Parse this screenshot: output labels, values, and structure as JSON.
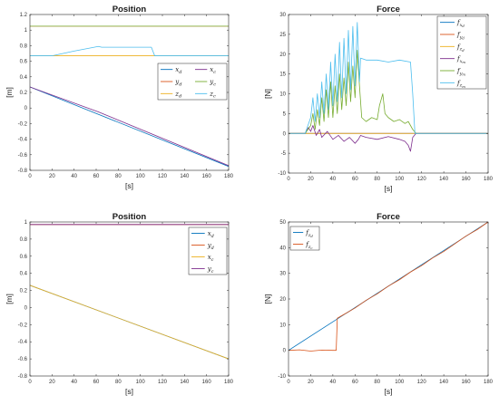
{
  "chart_data": [
    {
      "id": "p1",
      "type": "line",
      "title": "Position",
      "xlabel": "[s]",
      "ylabel": "[m]",
      "xlim": [
        0,
        180
      ],
      "ylim": [
        -0.8,
        1.2
      ],
      "xticks": [
        0,
        20,
        40,
        60,
        80,
        100,
        120,
        140,
        160,
        180
      ],
      "yticks": [
        -0.8,
        -0.6,
        -0.4,
        -0.2,
        0,
        0.2,
        0.4,
        0.6,
        0.8,
        1,
        1.2
      ],
      "legend_position": "right",
      "legend_columns": 2,
      "series": [
        {
          "name": "x_d",
          "label_main": "x",
          "label_sub": "d",
          "color": "#0072bd",
          "x": [
            0,
            180
          ],
          "y": [
            0.27,
            -0.75
          ]
        },
        {
          "name": "y_d",
          "label_main": "y",
          "label_sub": "d",
          "color": "#d95319",
          "x": [
            0,
            180
          ],
          "y": [
            1.05,
            1.05
          ]
        },
        {
          "name": "z_d",
          "label_main": "z",
          "label_sub": "d",
          "color": "#edb120",
          "x": [
            0,
            180
          ],
          "y": [
            0.67,
            0.67
          ]
        },
        {
          "name": "x_c",
          "label_main": "x",
          "label_sub": "c",
          "color": "#7e2f8e",
          "x": [
            0,
            62,
            180
          ],
          "y": [
            0.27,
            -0.05,
            -0.74
          ]
        },
        {
          "name": "y_c",
          "label_main": "y",
          "label_sub": "c",
          "color": "#77ac30",
          "x": [
            0,
            180
          ],
          "y": [
            1.05,
            1.05
          ]
        },
        {
          "name": "z_c",
          "label_main": "z",
          "label_sub": "c",
          "color": "#4dbeee",
          "x": [
            0,
            20,
            40,
            62,
            65,
            110,
            113,
            180
          ],
          "y": [
            0.67,
            0.67,
            0.73,
            0.79,
            0.78,
            0.78,
            0.67,
            0.67
          ]
        }
      ]
    },
    {
      "id": "f1",
      "type": "line",
      "title": "Force",
      "xlabel": "[s]",
      "ylabel": "[N]",
      "xlim": [
        0,
        180
      ],
      "ylim": [
        -10,
        30
      ],
      "xticks": [
        0,
        20,
        40,
        60,
        80,
        100,
        120,
        140,
        160,
        180
      ],
      "yticks": [
        -10,
        -5,
        0,
        5,
        10,
        15,
        20,
        25,
        30
      ],
      "legend_position": "top-right",
      "legend_columns": 1,
      "series": [
        {
          "name": "f_xd",
          "label_main": "f",
          "label_sub": "x",
          "label_subsub": "d",
          "color": "#0072bd",
          "x": [
            0,
            180
          ],
          "y": [
            0,
            0
          ]
        },
        {
          "name": "f_yd",
          "label_main": "f",
          "label_sub": "y",
          "label_subsub": "d",
          "color": "#d95319",
          "x": [
            0,
            180
          ],
          "y": [
            0,
            0
          ]
        },
        {
          "name": "f_zd",
          "label_main": "f",
          "label_sub": "z",
          "label_subsub": "d",
          "color": "#edb120",
          "x": [
            0,
            180
          ],
          "y": [
            0,
            0
          ]
        },
        {
          "name": "f_xm",
          "label_main": "f",
          "label_sub": "x",
          "label_subsub": "m",
          "color": "#7e2f8e",
          "x": [
            0,
            15,
            18,
            20,
            22,
            25,
            28,
            30,
            35,
            40,
            45,
            50,
            55,
            60,
            63,
            65,
            70,
            80,
            90,
            100,
            105,
            108,
            110,
            112,
            115,
            180
          ],
          "y": [
            0,
            0,
            1.5,
            0.5,
            2,
            -0.5,
            1,
            -1,
            0.5,
            -1.5,
            -0.5,
            -2,
            -1,
            -2.5,
            -1.5,
            -0.5,
            -1,
            -1.5,
            -0.8,
            -1.5,
            -2,
            -3,
            -4.5,
            -1,
            0,
            0
          ]
        },
        {
          "name": "f_ym",
          "label_main": "f",
          "label_sub": "y",
          "label_subsub": "m",
          "color": "#77ac30",
          "x": [
            0,
            15,
            20,
            22,
            24,
            26,
            28,
            30,
            32,
            34,
            36,
            38,
            40,
            42,
            44,
            46,
            48,
            50,
            52,
            54,
            56,
            58,
            60,
            62,
            64,
            66,
            70,
            75,
            80,
            82,
            85,
            87,
            90,
            95,
            100,
            105,
            108,
            110,
            112,
            115,
            180
          ],
          "y": [
            0,
            0,
            2,
            5,
            1,
            6,
            2,
            9,
            3,
            11,
            4,
            13,
            4,
            12,
            5,
            15,
            6,
            14,
            7,
            18,
            8,
            17,
            9,
            21,
            12,
            4,
            3,
            4,
            3.5,
            7,
            10,
            5,
            4,
            3,
            3.5,
            2.5,
            3,
            2,
            1,
            0,
            0
          ]
        },
        {
          "name": "f_zm",
          "label_main": "f",
          "label_sub": "z",
          "label_subsub": "m",
          "color": "#4dbeee",
          "x": [
            0,
            15,
            20,
            22,
            24,
            26,
            28,
            30,
            32,
            34,
            36,
            38,
            40,
            42,
            44,
            46,
            48,
            50,
            52,
            54,
            56,
            58,
            60,
            62,
            64,
            65,
            70,
            80,
            90,
            100,
            110,
            112,
            114,
            180
          ],
          "y": [
            0,
            0,
            4,
            9,
            3,
            10,
            4,
            13,
            5,
            15,
            6,
            18,
            7,
            20,
            8,
            23,
            9,
            24,
            10,
            26,
            11,
            27,
            12,
            28,
            13,
            19,
            18.5,
            18.5,
            18,
            18.5,
            18,
            10,
            0,
            0
          ]
        }
      ]
    },
    {
      "id": "p2",
      "type": "line",
      "title": "Position",
      "xlabel": "[s]",
      "ylabel": "[m]",
      "xlim": [
        0,
        180
      ],
      "ylim": [
        -0.8,
        1
      ],
      "xticks": [
        0,
        20,
        40,
        60,
        80,
        100,
        120,
        140,
        160,
        180
      ],
      "yticks": [
        -0.8,
        -0.6,
        -0.4,
        -0.2,
        0,
        0.2,
        0.4,
        0.6,
        0.8,
        1
      ],
      "legend_position": "top-right",
      "legend_columns": 1,
      "series": [
        {
          "name": "x_d",
          "label_main": "x",
          "label_sub": "d",
          "color": "#0072bd",
          "x": [
            0,
            180
          ],
          "y": [
            0.26,
            -0.6
          ]
        },
        {
          "name": "y_d",
          "label_main": "y",
          "label_sub": "d",
          "color": "#d95319",
          "x": [
            0,
            180
          ],
          "y": [
            0.97,
            0.97
          ]
        },
        {
          "name": "x_c",
          "label_main": "x",
          "label_sub": "c",
          "color": "#edb120",
          "x": [
            0,
            180
          ],
          "y": [
            0.26,
            -0.6
          ]
        },
        {
          "name": "y_c",
          "label_main": "y",
          "label_sub": "c",
          "color": "#7e2f8e",
          "x": [
            0,
            180
          ],
          "y": [
            0.97,
            0.97
          ]
        }
      ]
    },
    {
      "id": "f2",
      "type": "line",
      "title": "Force",
      "xlabel": "[s]",
      "ylabel": "[N]",
      "xlim": [
        0,
        180
      ],
      "ylim": [
        -10,
        50
      ],
      "xticks": [
        0,
        20,
        40,
        60,
        80,
        100,
        120,
        140,
        160,
        180
      ],
      "yticks": [
        -10,
        0,
        10,
        20,
        30,
        40,
        50
      ],
      "legend_position": "top-left",
      "legend_columns": 1,
      "series": [
        {
          "name": "f_zd",
          "label_main": "f",
          "label_sub": "z",
          "label_subsub": "d",
          "color": "#0072bd",
          "x": [
            0,
            180
          ],
          "y": [
            0,
            50
          ]
        },
        {
          "name": "f_zc",
          "label_main": "f",
          "label_sub": "z",
          "label_subsub": "c",
          "color": "#d95319",
          "x": [
            0,
            10,
            20,
            30,
            40,
            43,
            44,
            50,
            60,
            70,
            80,
            90,
            100,
            110,
            120,
            130,
            140,
            150,
            160,
            170,
            175,
            180
          ],
          "y": [
            0,
            0.2,
            -0.3,
            0.1,
            0,
            0,
            12.5,
            14,
            16.5,
            19.5,
            22,
            25,
            27.5,
            30.5,
            33,
            36,
            38.5,
            41.5,
            44.5,
            47,
            48.5,
            50
          ]
        }
      ]
    }
  ]
}
